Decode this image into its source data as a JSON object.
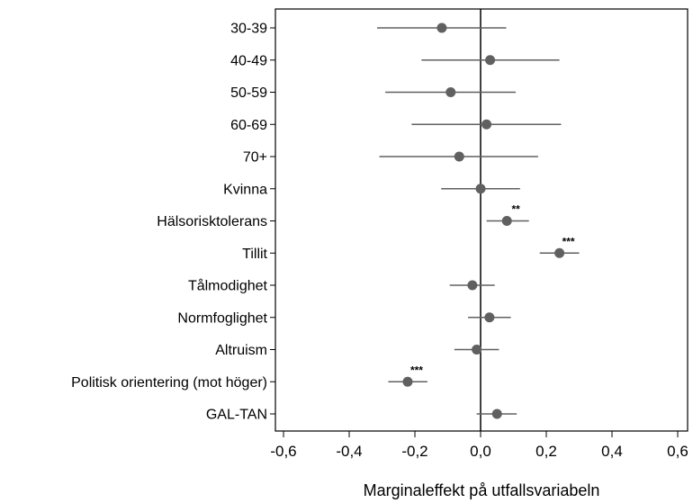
{
  "chart_data": {
    "type": "forest",
    "xlabel": "Marginaleffekt på utfallsvariabeln",
    "xlim": [
      -0.6,
      0.6
    ],
    "xticks": [
      -0.6,
      -0.4,
      -0.2,
      0.0,
      0.2,
      0.4,
      0.6
    ],
    "xtick_labels": [
      "-0,6",
      "-0,4",
      "-0,2",
      "0,0",
      "0,2",
      "0,4",
      "0,6"
    ],
    "reference_line": 0,
    "grid": false,
    "marker_color": "#606060",
    "line_color": "#606060",
    "rows": [
      {
        "label": "30-39",
        "estimate": -0.118,
        "ci_low": -0.315,
        "ci_high": 0.078,
        "sig": ""
      },
      {
        "label": "40-49",
        "estimate": 0.029,
        "ci_low": -0.18,
        "ci_high": 0.24,
        "sig": ""
      },
      {
        "label": "50-59",
        "estimate": -0.091,
        "ci_low": -0.29,
        "ci_high": 0.107,
        "sig": ""
      },
      {
        "label": "60-69",
        "estimate": 0.018,
        "ci_low": -0.21,
        "ci_high": 0.245,
        "sig": ""
      },
      {
        "label": "70+",
        "estimate": -0.065,
        "ci_low": -0.308,
        "ci_high": 0.175,
        "sig": ""
      },
      {
        "label": "Kvinna",
        "estimate": 0.0,
        "ci_low": -0.12,
        "ci_high": 0.12,
        "sig": ""
      },
      {
        "label": "Hälsorisktolerans",
        "estimate": 0.08,
        "ci_low": 0.018,
        "ci_high": 0.147,
        "sig": "**"
      },
      {
        "label": "Tillit",
        "estimate": 0.24,
        "ci_low": 0.18,
        "ci_high": 0.3,
        "sig": "***"
      },
      {
        "label": "Tålmodighet",
        "estimate": -0.025,
        "ci_low": -0.094,
        "ci_high": 0.043,
        "sig": ""
      },
      {
        "label": "Normfoglighet",
        "estimate": 0.027,
        "ci_low": -0.038,
        "ci_high": 0.092,
        "sig": ""
      },
      {
        "label": "Altruism",
        "estimate": -0.012,
        "ci_low": -0.08,
        "ci_high": 0.056,
        "sig": ""
      },
      {
        "label": "Politisk orientering (mot höger)",
        "estimate": -0.222,
        "ci_low": -0.281,
        "ci_high": -0.162,
        "sig": "***"
      },
      {
        "label": "GAL-TAN",
        "estimate": 0.05,
        "ci_low": -0.012,
        "ci_high": 0.11,
        "sig": ""
      }
    ]
  }
}
